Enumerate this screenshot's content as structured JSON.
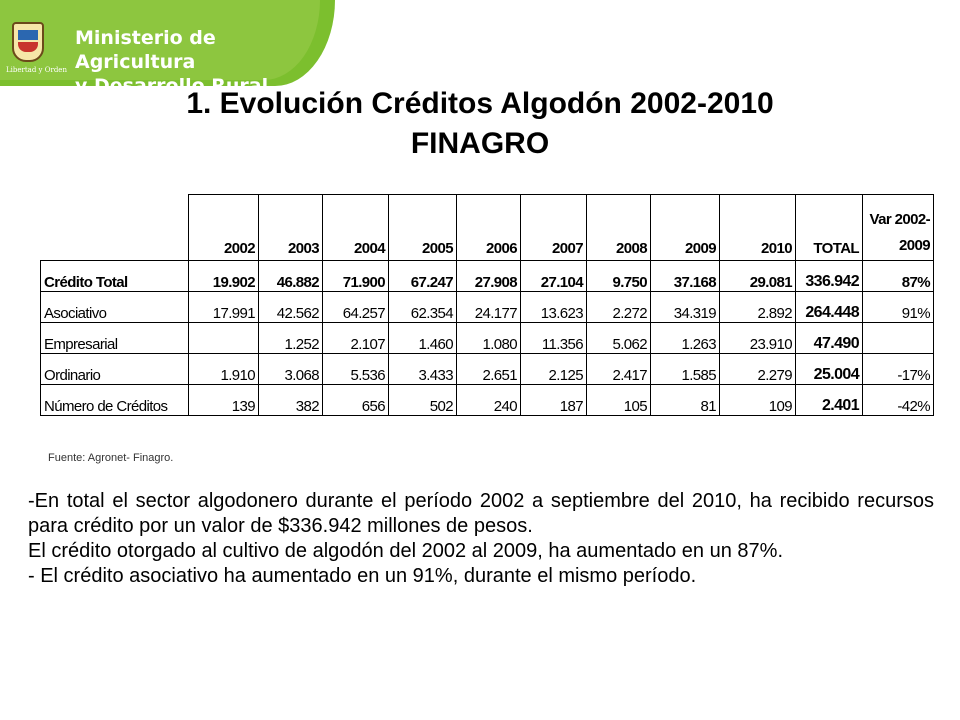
{
  "header": {
    "ministry_line1": "Ministerio de Agricultura",
    "ministry_line2": "y Desarrollo Rural",
    "motto": "Libertad y Orden"
  },
  "title": {
    "line1": "1. Evolución Créditos Algodón 2002-2010",
    "line2": "FINAGRO"
  },
  "table": {
    "columns": [
      "2002",
      "2003",
      "2004",
      "2005",
      "2006",
      "2007",
      "2008",
      "2009",
      "2010",
      "TOTAL"
    ],
    "var_header_line1": "Var 2002-",
    "var_header_line2": "2009",
    "rows": [
      {
        "label": "Crédito Total",
        "values": [
          "19.902",
          "46.882",
          "71.900",
          "67.247",
          "27.908",
          "27.104",
          "9.750",
          "37.168",
          "29.081"
        ],
        "total": "336.942",
        "var": "87%"
      },
      {
        "label": "Asociativo",
        "values": [
          "17.991",
          "42.562",
          "64.257",
          "62.354",
          "24.177",
          "13.623",
          "2.272",
          "34.319",
          "2.892"
        ],
        "total": "264.448",
        "var": "91%"
      },
      {
        "label": "Empresarial",
        "values": [
          "",
          "1.252",
          "2.107",
          "1.460",
          "1.080",
          "11.356",
          "5.062",
          "1.263",
          "23.910"
        ],
        "total": "47.490",
        "var": ""
      },
      {
        "label": "Ordinario",
        "values": [
          "1.910",
          "3.068",
          "5.536",
          "3.433",
          "2.651",
          "2.125",
          "2.417",
          "1.585",
          "2.279"
        ],
        "total": "25.004",
        "var": "-17%"
      },
      {
        "label": "Número de Créditos",
        "values": [
          "139",
          "382",
          "656",
          "502",
          "240",
          "187",
          "105",
          "81",
          "109"
        ],
        "total": "2.401",
        "var": "-42%"
      }
    ]
  },
  "source": "Fuente: Agronet- Finagro.",
  "paragraphs": [
    "-En total el sector algodonero durante el período 2002 a septiembre del 2010, ha recibido recursos para crédito por un valor de $336.942 millones de pesos.",
    " El crédito otorgado al cultivo de algodón del 2002 al 2009, ha aumentado en un 87%.",
    "- El crédito asociativo ha aumentado en un 91%, durante el mismo período."
  ]
}
